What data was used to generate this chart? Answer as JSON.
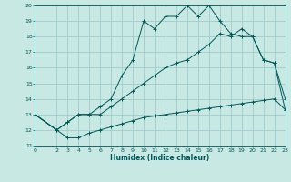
{
  "xlabel": "Humidex (Indice chaleur)",
  "bg_color": "#c8e8e4",
  "grid_color": "#a0cccc",
  "line_color": "#005858",
  "line1_x": [
    0,
    2,
    3,
    4,
    5,
    6,
    7,
    8,
    9,
    10,
    11,
    12,
    13,
    14,
    15,
    16,
    17,
    18,
    19,
    20,
    21,
    22,
    23
  ],
  "line1_y": [
    13,
    12,
    11.5,
    11.5,
    11.8,
    12,
    12.2,
    12.4,
    12.6,
    12.8,
    12.9,
    13.0,
    13.1,
    13.2,
    13.3,
    13.4,
    13.5,
    13.6,
    13.7,
    13.8,
    13.9,
    14.0,
    13.3
  ],
  "line2_x": [
    0,
    2,
    3,
    4,
    5,
    6,
    7,
    8,
    9,
    10,
    11,
    12,
    13,
    14,
    15,
    16,
    17,
    18,
    19,
    20,
    21,
    22,
    23
  ],
  "line2_y": [
    13,
    12,
    12.5,
    13,
    13,
    13.5,
    14,
    15.5,
    16.5,
    19,
    18.5,
    19.3,
    19.3,
    20,
    19.3,
    20,
    19,
    18.2,
    18,
    18,
    16.5,
    16.3,
    14
  ],
  "line3_x": [
    0,
    2,
    3,
    4,
    5,
    6,
    7,
    8,
    9,
    10,
    11,
    12,
    13,
    14,
    15,
    16,
    17,
    18,
    19,
    20,
    21,
    22,
    23
  ],
  "line3_y": [
    13,
    12,
    12.5,
    13,
    13,
    13,
    13.5,
    14,
    14.5,
    15,
    15.5,
    16,
    16.3,
    16.5,
    17,
    17.5,
    18.2,
    18,
    18.5,
    18,
    16.5,
    16.3,
    13.3
  ],
  "xlim": [
    0,
    23
  ],
  "ylim": [
    11,
    20
  ],
  "xticks": [
    0,
    2,
    3,
    4,
    5,
    6,
    7,
    8,
    9,
    10,
    11,
    12,
    13,
    14,
    15,
    16,
    17,
    18,
    19,
    20,
    21,
    22,
    23
  ],
  "yticks": [
    11,
    12,
    13,
    14,
    15,
    16,
    17,
    18,
    19,
    20
  ]
}
